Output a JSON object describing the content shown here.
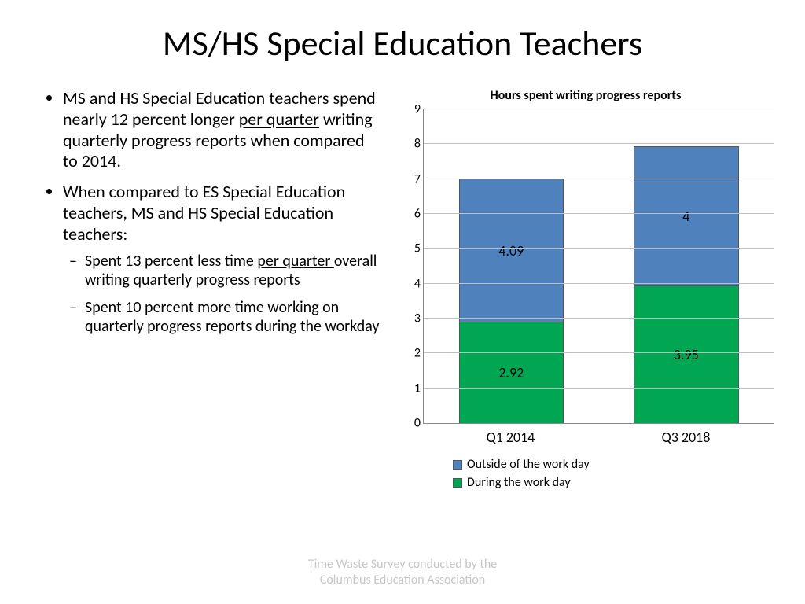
{
  "title": "MS/HS Special Education Teachers",
  "bullets": {
    "b1_pre": "MS and HS Special Education teachers spend nearly 12 percent longer ",
    "b1_u": "per quarter",
    "b1_post": " writing quarterly progress reports when compared to 2014.",
    "b2": "When compared to ES Special Education teachers, MS and HS Special Education teachers:",
    "s1_pre": "Spent 13 percent less time ",
    "s1_u": "per quarter ",
    "s1_post": "overall writing quarterly progress reports",
    "s2": "Spent 10 percent more time working on quarterly progress reports during the workday"
  },
  "chart": {
    "title": "Hours spent writing progress reports",
    "type": "stacked-bar",
    "ylim_max": 9,
    "ytick_step": 1,
    "categories": [
      "Q1 2014",
      "Q3 2018"
    ],
    "series": [
      {
        "name": "During the work day",
        "color": "#00a651",
        "values": [
          2.92,
          3.95
        ],
        "labels": [
          "2.92",
          "3.95"
        ]
      },
      {
        "name": "Outside of the work day",
        "color": "#4f81bd",
        "values": [
          4.09,
          4
        ],
        "labels": [
          "4.09",
          "4"
        ]
      }
    ],
    "grid_color": "#bfbfbf",
    "axis_color": "#888888",
    "label_fontsize": 16,
    "datalabel_fontsize": 18
  },
  "footer": {
    "line1": "Time Waste Survey conducted by the",
    "line2": "Columbus Education Association"
  }
}
